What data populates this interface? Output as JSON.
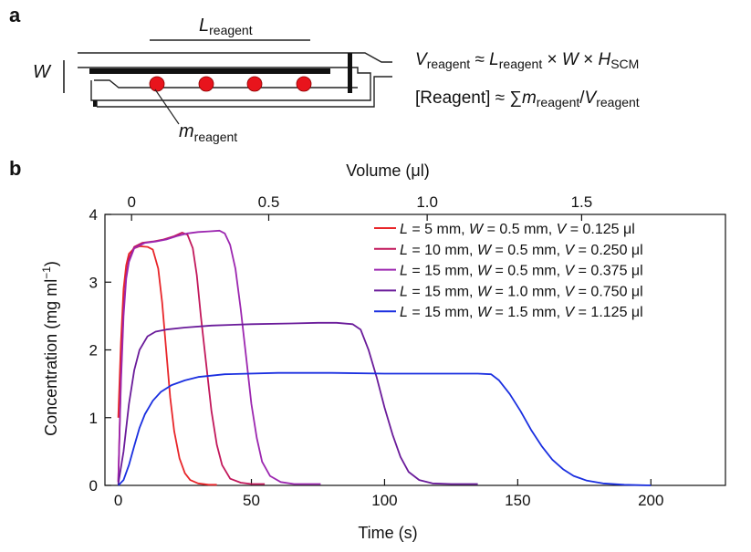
{
  "panel_a": {
    "letter": "a",
    "label_L": "L",
    "label_L_sub": "reagent",
    "label_W": "W",
    "label_m": "m",
    "label_m_sub": "reagent",
    "eq1": {
      "p1": "V",
      "p1_sub": "reagent",
      "p2": " ≈ ",
      "p3": "L",
      "p3_sub": "reagent",
      "p4": " × ",
      "p5": "W",
      "p6": " × ",
      "p7": "H",
      "p7_sub": "SCM"
    },
    "eq2": {
      "p1": "[Reagent] ≈ ∑",
      "p2": "m",
      "p2_sub": "reagent",
      "p3": "/",
      "p4": "V",
      "p4_sub": "reagent"
    },
    "colors": {
      "bead": "#e8141c",
      "outline": "#222222"
    }
  },
  "chart_data": {
    "type": "line",
    "letter": "b",
    "xlabel": "Time (s)",
    "x2label": "Volume (μl)",
    "ylabel": "Concentration (mg ml",
    "ylabel_sup": "−1",
    "ylabel_close": ")",
    "xlim": [
      -5,
      228
    ],
    "ylim": [
      0,
      4
    ],
    "xticks": [
      0,
      50,
      100,
      150,
      200
    ],
    "yticks": [
      0,
      1,
      2,
      3,
      4
    ],
    "x2ticks": [
      {
        "label": "0",
        "time": 5
      },
      {
        "label": "0.5",
        "time": 56.5
      },
      {
        "label": "1.0",
        "time": 116
      },
      {
        "label": "1.5",
        "time": 174
      }
    ],
    "series": [
      {
        "label_parts": [
          "L",
          " = 5 mm, ",
          "W",
          " = 0.5 mm, ",
          "V",
          " = 0.125 μl"
        ],
        "color": "#e8262a",
        "points": [
          [
            0,
            1.0
          ],
          [
            1,
            2.1
          ],
          [
            2,
            2.9
          ],
          [
            3,
            3.25
          ],
          [
            4,
            3.42
          ],
          [
            6,
            3.5
          ],
          [
            8,
            3.53
          ],
          [
            11,
            3.52
          ],
          [
            13,
            3.48
          ],
          [
            15,
            3.2
          ],
          [
            16.5,
            2.7
          ],
          [
            18,
            2.0
          ],
          [
            19.5,
            1.3
          ],
          [
            21,
            0.8
          ],
          [
            23,
            0.4
          ],
          [
            25,
            0.18
          ],
          [
            27,
            0.08
          ],
          [
            30,
            0.03
          ],
          [
            34,
            0.01
          ],
          [
            37,
            0.01
          ]
        ]
      },
      {
        "label_parts": [
          "L",
          " = 10 mm, ",
          "W",
          " = 0.5 mm, ",
          "V",
          " = 0.250 μl"
        ],
        "color": "#c2185b",
        "points": [
          [
            0,
            0.05
          ],
          [
            1,
            1.6
          ],
          [
            2,
            2.6
          ],
          [
            3,
            3.1
          ],
          [
            4,
            3.35
          ],
          [
            6,
            3.52
          ],
          [
            9,
            3.58
          ],
          [
            13,
            3.6
          ],
          [
            17,
            3.63
          ],
          [
            21,
            3.68
          ],
          [
            24,
            3.73
          ],
          [
            26,
            3.7
          ],
          [
            28,
            3.5
          ],
          [
            29.5,
            3.1
          ],
          [
            31,
            2.5
          ],
          [
            33,
            1.8
          ],
          [
            35,
            1.1
          ],
          [
            37,
            0.6
          ],
          [
            39,
            0.3
          ],
          [
            42,
            0.1
          ],
          [
            46,
            0.04
          ],
          [
            50,
            0.02
          ],
          [
            55,
            0.02
          ]
        ]
      },
      {
        "label_parts": [
          "L",
          " = 15 mm, ",
          "W",
          " = 0.5 mm, ",
          "V",
          " = 0.375 μl"
        ],
        "color": "#9c27b0",
        "points": [
          [
            0,
            0.05
          ],
          [
            1,
            1.5
          ],
          [
            2,
            2.5
          ],
          [
            3,
            3.05
          ],
          [
            4,
            3.3
          ],
          [
            6,
            3.5
          ],
          [
            10,
            3.58
          ],
          [
            14,
            3.6
          ],
          [
            18,
            3.63
          ],
          [
            22,
            3.68
          ],
          [
            26,
            3.72
          ],
          [
            30,
            3.74
          ],
          [
            34,
            3.75
          ],
          [
            38,
            3.76
          ],
          [
            40,
            3.72
          ],
          [
            42,
            3.55
          ],
          [
            44,
            3.2
          ],
          [
            46,
            2.6
          ],
          [
            48,
            1.9
          ],
          [
            50,
            1.2
          ],
          [
            52,
            0.7
          ],
          [
            54,
            0.35
          ],
          [
            57,
            0.14
          ],
          [
            61,
            0.05
          ],
          [
            66,
            0.02
          ],
          [
            70,
            0.02
          ],
          [
            76,
            0.02
          ]
        ]
      },
      {
        "label_parts": [
          "L",
          " = 15 mm, ",
          "W",
          " = 1.0 mm, ",
          "V",
          " = 0.750 μl"
        ],
        "color": "#6a1b9a",
        "points": [
          [
            0,
            0.02
          ],
          [
            2,
            0.5
          ],
          [
            4,
            1.2
          ],
          [
            6,
            1.7
          ],
          [
            8,
            2.0
          ],
          [
            11,
            2.2
          ],
          [
            14,
            2.27
          ],
          [
            18,
            2.3
          ],
          [
            25,
            2.33
          ],
          [
            35,
            2.36
          ],
          [
            50,
            2.38
          ],
          [
            65,
            2.39
          ],
          [
            75,
            2.4
          ],
          [
            82,
            2.4
          ],
          [
            88,
            2.38
          ],
          [
            91,
            2.3
          ],
          [
            94,
            2.0
          ],
          [
            97,
            1.6
          ],
          [
            100,
            1.15
          ],
          [
            103,
            0.75
          ],
          [
            106,
            0.42
          ],
          [
            109,
            0.2
          ],
          [
            113,
            0.08
          ],
          [
            118,
            0.03
          ],
          [
            125,
            0.02
          ],
          [
            135,
            0.02
          ]
        ]
      },
      {
        "label_parts": [
          "L",
          " = 15 mm, ",
          "W",
          " = 1.5 mm, ",
          "V",
          " = 1.125 μl"
        ],
        "color": "#1a2fe0",
        "points": [
          [
            0,
            0.0
          ],
          [
            2,
            0.08
          ],
          [
            4,
            0.3
          ],
          [
            6,
            0.58
          ],
          [
            8,
            0.85
          ],
          [
            10,
            1.05
          ],
          [
            13,
            1.25
          ],
          [
            16,
            1.38
          ],
          [
            20,
            1.48
          ],
          [
            25,
            1.55
          ],
          [
            30,
            1.6
          ],
          [
            40,
            1.64
          ],
          [
            60,
            1.66
          ],
          [
            80,
            1.66
          ],
          [
            100,
            1.65
          ],
          [
            120,
            1.65
          ],
          [
            135,
            1.65
          ],
          [
            140,
            1.64
          ],
          [
            143,
            1.55
          ],
          [
            147,
            1.35
          ],
          [
            151,
            1.1
          ],
          [
            155,
            0.82
          ],
          [
            159,
            0.58
          ],
          [
            163,
            0.38
          ],
          [
            167,
            0.24
          ],
          [
            171,
            0.14
          ],
          [
            176,
            0.07
          ],
          [
            182,
            0.03
          ],
          [
            190,
            0.01
          ],
          [
            200,
            0.0
          ]
        ]
      }
    ]
  }
}
